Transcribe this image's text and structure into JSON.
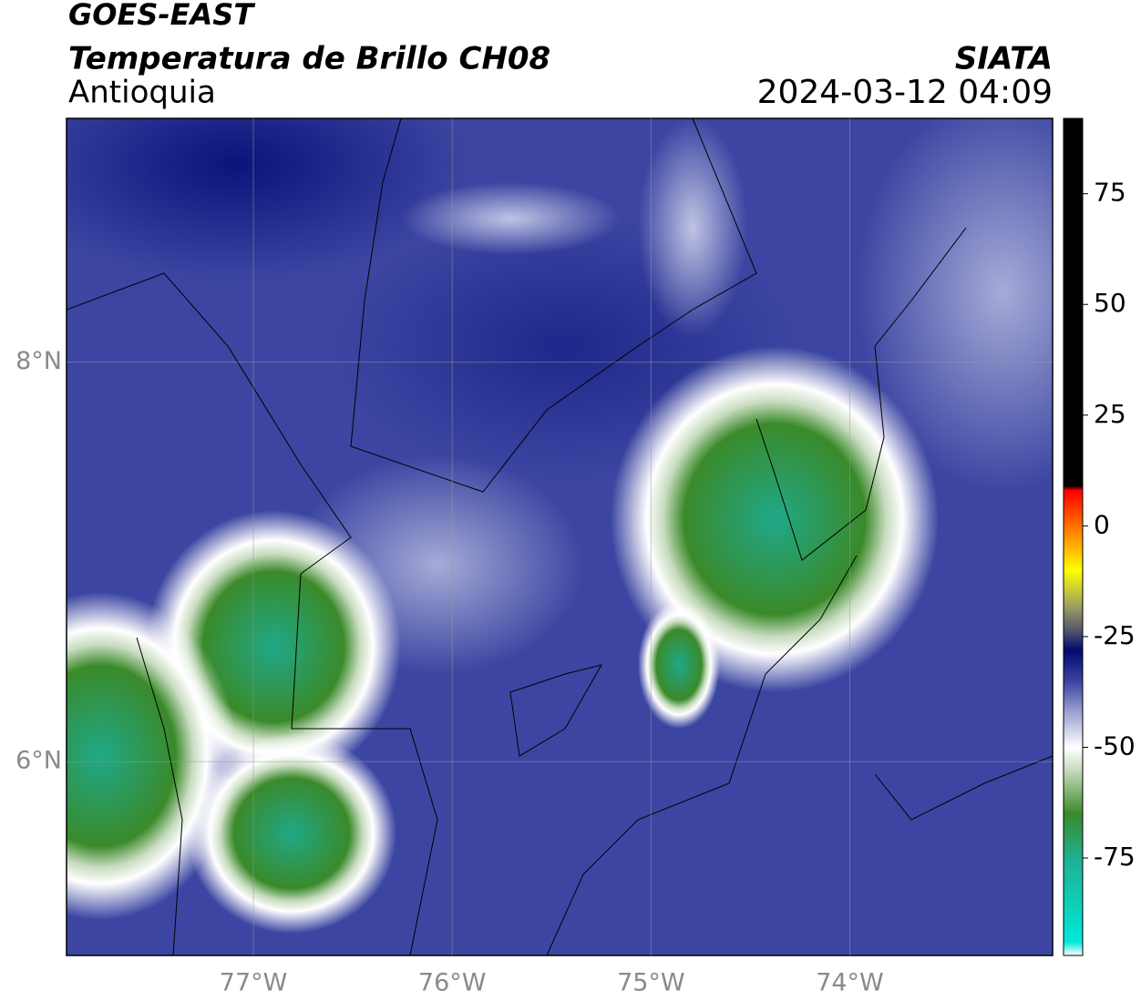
{
  "header": {
    "title": "GOES-EAST",
    "subtitle": "Temperatura de Brillo CH08",
    "region": "Antioquia",
    "source": "SIATA",
    "timestamp": "2024-03-12 04:09"
  },
  "map": {
    "xlim": [
      -77.94,
      -72.98
    ],
    "ylim": [
      5.03,
      9.22
    ],
    "xticks": [
      {
        "value": -77,
        "label": "77°W"
      },
      {
        "value": -76,
        "label": "76°W"
      },
      {
        "value": -75,
        "label": "75°W"
      },
      {
        "value": -74,
        "label": "74°W"
      }
    ],
    "yticks": [
      {
        "value": 8,
        "label": "8°N"
      },
      {
        "value": 6,
        "label": "6°N"
      }
    ],
    "grid": true
  },
  "colorbar": {
    "lim": [
      -97,
      92
    ],
    "ticks": [
      75,
      50,
      25,
      0,
      -25,
      -50,
      -75
    ],
    "colors": [
      {
        "value": -97,
        "color": "#ffffff"
      },
      {
        "value": -94,
        "color": "#00e8da"
      },
      {
        "value": -75,
        "color": "#20b090"
      },
      {
        "value": -65,
        "color": "#3a8a2a"
      },
      {
        "value": -55,
        "color": "#c8dcc0"
      },
      {
        "value": -50,
        "color": "#ffffff"
      },
      {
        "value": -42,
        "color": "#9aa0d0"
      },
      {
        "value": -35,
        "color": "#3a42a0"
      },
      {
        "value": -28,
        "color": "#000a6e"
      },
      {
        "value": -24,
        "color": "#505070"
      },
      {
        "value": -18,
        "color": "#a0a060"
      },
      {
        "value": -10,
        "color": "#ffff00"
      },
      {
        "value": -3,
        "color": "#ff9900"
      },
      {
        "value": 8,
        "color": "#ff0000"
      },
      {
        "value": 9,
        "color": "#000000"
      },
      {
        "value": 92,
        "color": "#000000"
      }
    ]
  }
}
